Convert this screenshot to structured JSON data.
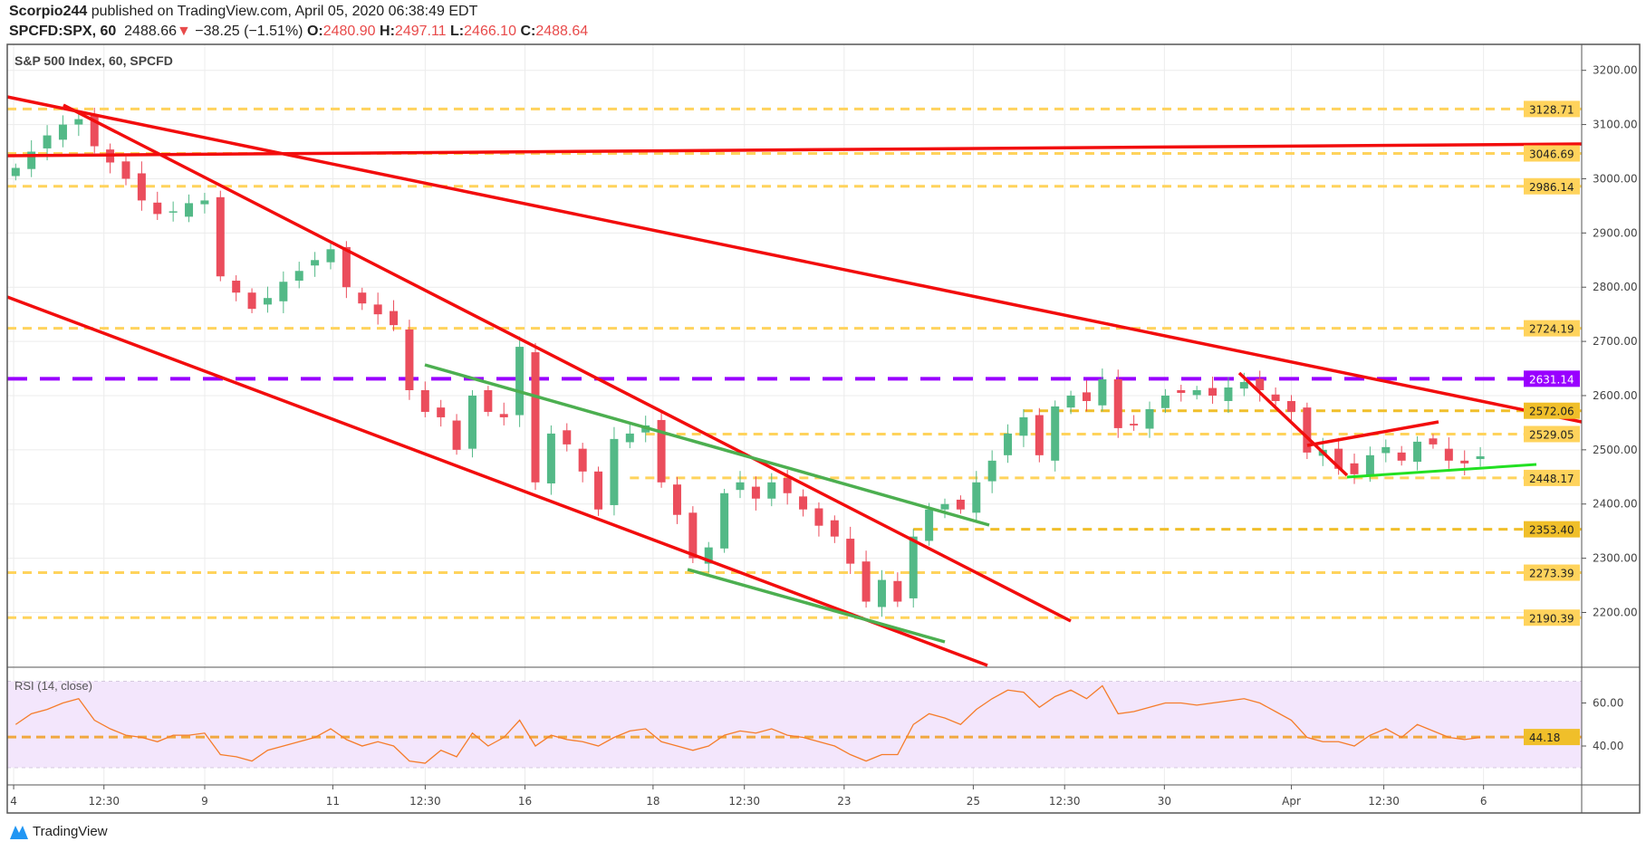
{
  "header": {
    "author": "Scorpio244",
    "published": "published on TradingView.com, April 05, 2020 06:38:49 EDT",
    "symbol": "SPCFD:SPX, 60",
    "last": "2488.66",
    "arrow": "▼",
    "change": "−38.25 (−1.51%)",
    "o_label": "O:",
    "o": "2480.90",
    "h_label": "H:",
    "h": "2497.11",
    "l_label": "L:",
    "l": "2466.10",
    "c_label": "C:",
    "c": "2488.64"
  },
  "footer": {
    "logo_text": "TradingView"
  },
  "colors": {
    "up": "#53b987",
    "down": "#eb4d5c",
    "trend_red": "#f20d0d",
    "trend_green": "#4caf50",
    "bright_green": "#22e022",
    "purple": "#9900ff",
    "level": "#ffd35c",
    "level_dark": "#f0bf2a",
    "rsi": "#f57c2a",
    "rsi_band": "#f3e6fc"
  },
  "chart_data": {
    "type": "candlestick",
    "title": "S&P 500 Index, 60, SPCFD",
    "ylim": [
      2090,
      3240
    ],
    "price_ticks": [
      "3200.00",
      "3100.00",
      "3000.00",
      "2900.00",
      "2800.00",
      "2700.00",
      "2600.00",
      "2500.00",
      "2400.00",
      "2300.00",
      "2200.00"
    ],
    "levels": [
      {
        "value": 3128.71,
        "label": "3128.71",
        "from": 0
      },
      {
        "value": 3046.69,
        "label": "3046.69",
        "from": 0
      },
      {
        "value": 2986.14,
        "label": "2986.14",
        "from": 0
      },
      {
        "value": 2724.19,
        "label": "2724.19",
        "from": 0
      },
      {
        "value": 2572.06,
        "label": "2572.06",
        "from": 64,
        "dark": true
      },
      {
        "value": 2529.05,
        "label": "2529.05",
        "from": 40
      },
      {
        "value": 2448.17,
        "label": "2448.17",
        "from": 39
      },
      {
        "value": 2353.4,
        "label": "2353.40",
        "from": 57,
        "dark": true
      },
      {
        "value": 2273.39,
        "label": "2273.39",
        "from": 0
      },
      {
        "value": 2190.39,
        "label": "2190.39",
        "from": 0
      }
    ],
    "purple_level": {
      "value": 2631.14,
      "label": "2631.14"
    },
    "closes": [
      3020,
      3050,
      3080,
      3100,
      3110,
      3060,
      3030,
      3000,
      2960,
      2935,
      2940,
      2955,
      2960,
      2820,
      2790,
      2760,
      2780,
      2810,
      2830,
      2850,
      2870,
      2800,
      2770,
      2750,
      2730,
      2610,
      2570,
      2560,
      2500,
      2600,
      2570,
      2560,
      2690,
      2440,
      2530,
      2510,
      2460,
      2390,
      2520,
      2530,
      2545,
      2440,
      2380,
      2300,
      2320,
      2420,
      2440,
      2410,
      2440,
      2420,
      2390,
      2360,
      2340,
      2290,
      2220,
      2260,
      2220,
      2340,
      2390,
      2400,
      2390,
      2440,
      2480,
      2530,
      2560,
      2490,
      2580,
      2600,
      2590,
      2630,
      2540,
      2545,
      2575,
      2600,
      2605,
      2610,
      2600,
      2615,
      2625,
      2610,
      2590,
      2570,
      2495,
      2500,
      2465,
      2455,
      2490,
      2505,
      2480,
      2515,
      2510,
      2480,
      2475,
      2488
    ],
    "rsi": {
      "label": "RSI (14, close)",
      "ticks": [
        "60.00",
        "40.00"
      ],
      "ylim": [
        20,
        80
      ],
      "bands": [
        70,
        30
      ],
      "level": {
        "value": 44.18,
        "label": "44.18"
      },
      "values": [
        50,
        55,
        57,
        60,
        62,
        52,
        48,
        45,
        44,
        42,
        45,
        45,
        46,
        36,
        35,
        33,
        38,
        40,
        42,
        44,
        48,
        43,
        40,
        42,
        40,
        33,
        32,
        38,
        35,
        46,
        40,
        44,
        52,
        40,
        45,
        43,
        42,
        40,
        44,
        47,
        48,
        42,
        40,
        38,
        40,
        45,
        47,
        46,
        48,
        45,
        44,
        42,
        40,
        36,
        33,
        36,
        36,
        50,
        55,
        53,
        50,
        57,
        62,
        66,
        65,
        58,
        63,
        66,
        62,
        68,
        55,
        56,
        58,
        60,
        60,
        59,
        60,
        61,
        62,
        60,
        56,
        52,
        44,
        42,
        42,
        40,
        45,
        48,
        44,
        50,
        47,
        44,
        43,
        44
      ]
    },
    "time_labels": [
      "4",
      "12:30",
      "9",
      "11",
      "12:30",
      "16",
      "18",
      "12:30",
      "23",
      "25",
      "12:30",
      "30",
      "Apr",
      "12:30",
      "6"
    ]
  }
}
